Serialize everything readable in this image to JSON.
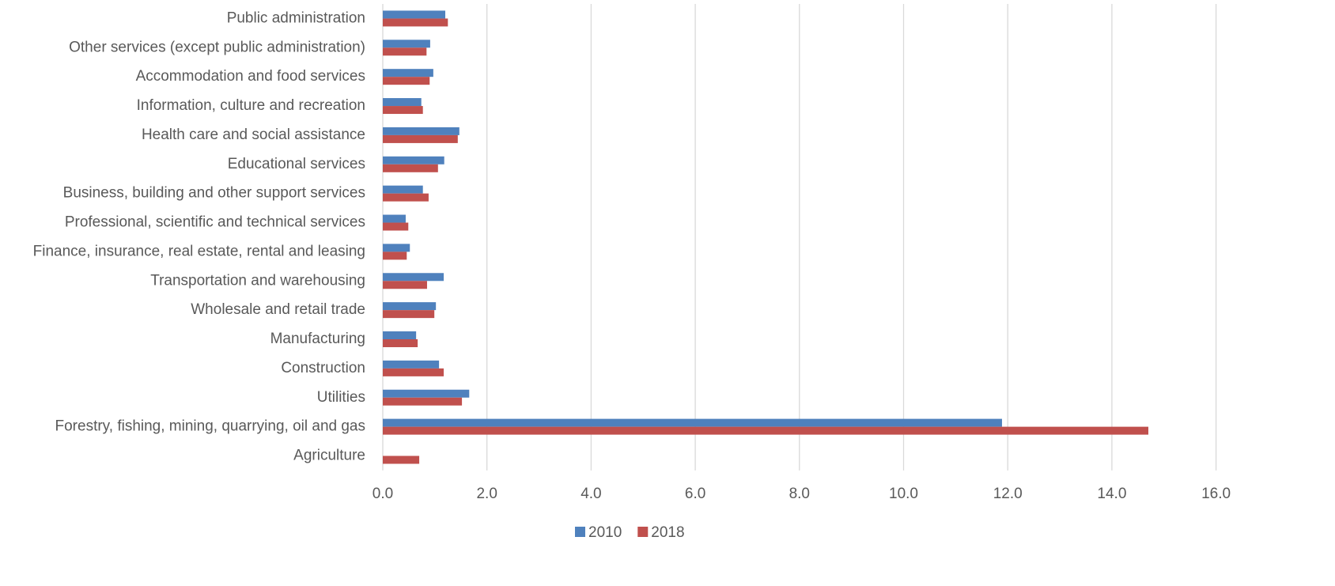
{
  "chart_data": {
    "type": "hbar",
    "categories": [
      "Public administration",
      "Other services (except public administration)",
      "Accommodation and food services",
      "Information, culture and recreation",
      "Health care and social assistance",
      "Educational services",
      "Business, building and other support services",
      "Professional, scientific and technical services",
      "Finance, insurance, real estate, rental and leasing",
      "Transportation and warehousing ",
      "Wholesale and retail trade",
      "Manufacturing",
      "Construction",
      "Utilities",
      "Forestry, fishing, mining, quarrying, oil and gas",
      "Agriculture"
    ],
    "series": [
      {
        "name": "2010",
        "color": "#4f81bd",
        "values": [
          1.2,
          0.91,
          0.97,
          0.74,
          1.47,
          1.18,
          0.77,
          0.44,
          0.52,
          1.17,
          1.02,
          0.64,
          1.08,
          1.66,
          11.89,
          null
        ]
      },
      {
        "name": "2018",
        "color": "#c0504d",
        "values": [
          1.25,
          0.84,
          0.9,
          0.77,
          1.44,
          1.06,
          0.88,
          0.49,
          0.46,
          0.85,
          0.99,
          0.67,
          1.17,
          1.52,
          14.7,
          0.7
        ]
      }
    ],
    "xlim": [
      0,
      16
    ],
    "xticks": [
      {
        "value": 0,
        "label": "0.0"
      },
      {
        "value": 2,
        "label": "2.0"
      },
      {
        "value": 4,
        "label": "4.0"
      },
      {
        "value": 6,
        "label": "6.0"
      },
      {
        "value": 8,
        "label": "8.0"
      },
      {
        "value": 10,
        "label": "10.0"
      },
      {
        "value": 12,
        "label": "12.0"
      },
      {
        "value": 14,
        "label": "14.0"
      },
      {
        "value": 16,
        "label": "16.0"
      }
    ],
    "grid": true,
    "legend": "bottom"
  }
}
